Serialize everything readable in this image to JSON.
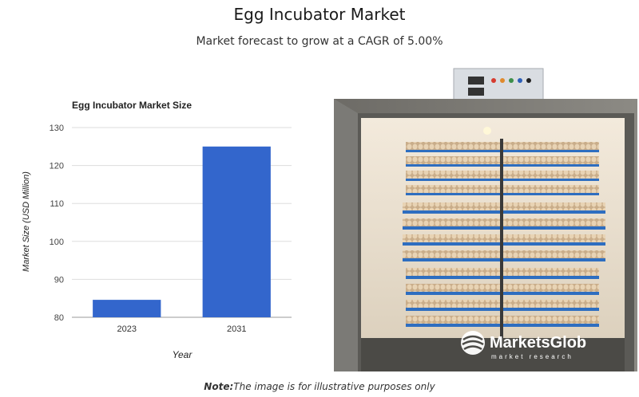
{
  "header": {
    "title": "Egg Incubator Market",
    "subtitle": "Market forecast to grow at a CAGR of 5.00%"
  },
  "chart_data": {
    "type": "bar",
    "title": "Egg Incubator Market Size",
    "categories": [
      "2023",
      "2031"
    ],
    "values": [
      84.6,
      125
    ],
    "xlabel": "Year",
    "ylabel": "Market Size (USD Million)",
    "ylim": [
      80,
      130
    ],
    "yticks": [
      80,
      90,
      100,
      110,
      120,
      130
    ],
    "grid": true,
    "bar_color": "#3366cc"
  },
  "image": {
    "logo_text": "MarketsGlob",
    "logo_tagline": "market research"
  },
  "footer": {
    "note_label": "Note:",
    "note_text": "The image is for illustrative purposes only"
  }
}
